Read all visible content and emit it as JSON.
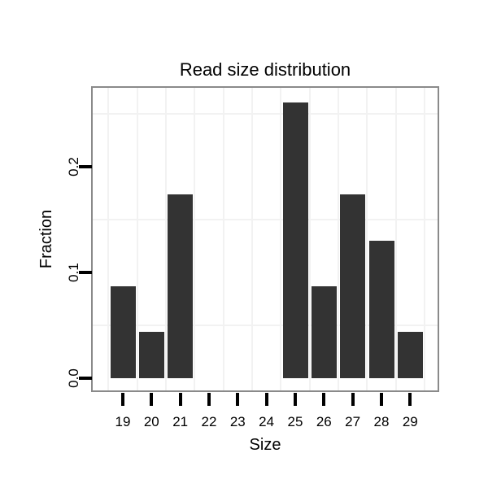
{
  "chart_data": {
    "type": "bar",
    "title": "Read size distribution",
    "xlabel": "Size",
    "ylabel": "Fraction",
    "categories": [
      "19",
      "20",
      "21",
      "22",
      "23",
      "24",
      "25",
      "26",
      "27",
      "28",
      "29"
    ],
    "values": [
      0.087,
      0.0435,
      0.1739,
      0,
      0,
      0,
      0.2609,
      0.087,
      0.1739,
      0.1304,
      0.0435
    ],
    "y_ticks": [
      {
        "label": "0.0",
        "value": 0
      },
      {
        "label": "0.1",
        "value": 0.1
      },
      {
        "label": "0.2",
        "value": 0.2
      }
    ],
    "y_minor_gridlines": [
      0.05,
      0.15,
      0.25
    ],
    "ylim": [
      -0.012,
      0.273
    ],
    "grid": "faint minor gridlines: horizontal at 0.05/0.15/0.25, vertical at category boundaries",
    "legend": "none",
    "colors": {
      "bar": "#333333",
      "panel_border": "#8a8a8a",
      "gridline": "#f2f2f2",
      "tick": "#000000",
      "text": "#000000",
      "background": "#ffffff"
    }
  }
}
